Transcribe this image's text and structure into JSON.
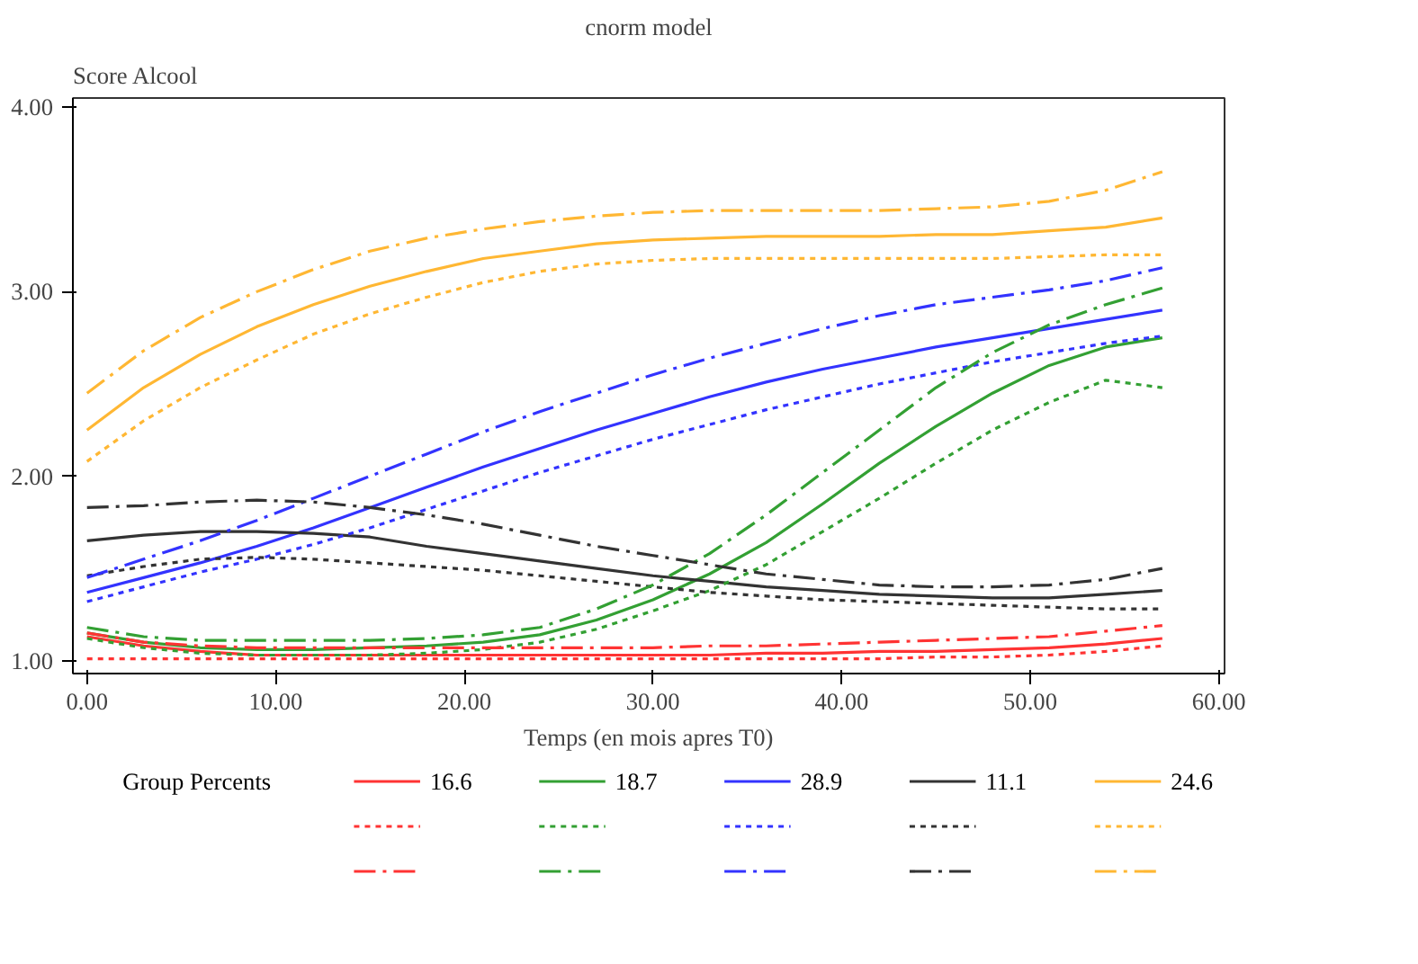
{
  "chart_data": {
    "type": "line",
    "title": "cnorm model",
    "ylabel": "Score Alcool",
    "xlabel": "Temps (en mois apres T0)",
    "legend_title": "Group Percents",
    "x": [
      0,
      3,
      6,
      9,
      12,
      15,
      18,
      21,
      24,
      27,
      30,
      33,
      36,
      39,
      42,
      45,
      48,
      51,
      54,
      57
    ],
    "xlim": [
      -0.75,
      60.3
    ],
    "ylim": [
      0.93,
      4.05
    ],
    "xticks": [
      {
        "value": 0,
        "label": "0.00"
      },
      {
        "value": 10,
        "label": "10.00"
      },
      {
        "value": 20,
        "label": "20.00"
      },
      {
        "value": 30,
        "label": "30.00"
      },
      {
        "value": 40,
        "label": "40.00"
      },
      {
        "value": 50,
        "label": "50.00"
      },
      {
        "value": 60,
        "label": "60.00"
      }
    ],
    "yticks": [
      {
        "value": 1,
        "label": "1.00"
      },
      {
        "value": 2,
        "label": "2.00"
      },
      {
        "value": 3,
        "label": "3.00"
      },
      {
        "value": 4,
        "label": "4.00"
      }
    ],
    "grid": false,
    "legend": "bottom",
    "series": [
      {
        "name": "16.6",
        "color": "#ff3333",
        "line_style": "solid",
        "values": [
          1.13,
          1.08,
          1.05,
          1.03,
          1.03,
          1.03,
          1.03,
          1.03,
          1.03,
          1.03,
          1.03,
          1.03,
          1.04,
          1.04,
          1.05,
          1.05,
          1.06,
          1.07,
          1.09,
          1.12
        ]
      },
      {
        "name": "18.7",
        "color": "#33a033",
        "line_style": "solid",
        "values": [
          1.15,
          1.1,
          1.07,
          1.06,
          1.06,
          1.07,
          1.08,
          1.1,
          1.14,
          1.22,
          1.33,
          1.47,
          1.64,
          1.85,
          2.07,
          2.27,
          2.45,
          2.6,
          2.7,
          2.75
        ]
      },
      {
        "name": "28.9",
        "color": "#3333ff",
        "line_style": "solid",
        "values": [
          1.37,
          1.45,
          1.53,
          1.62,
          1.72,
          1.83,
          1.94,
          2.05,
          2.15,
          2.25,
          2.34,
          2.43,
          2.51,
          2.58,
          2.64,
          2.7,
          2.75,
          2.8,
          2.85,
          2.9
        ]
      },
      {
        "name": "11.1",
        "color": "#333333",
        "line_style": "solid",
        "values": [
          1.65,
          1.68,
          1.7,
          1.7,
          1.69,
          1.67,
          1.62,
          1.58,
          1.54,
          1.5,
          1.46,
          1.43,
          1.4,
          1.38,
          1.36,
          1.35,
          1.34,
          1.34,
          1.36,
          1.38
        ]
      },
      {
        "name": "24.6",
        "color": "#ffb733",
        "line_style": "solid",
        "values": [
          2.25,
          2.48,
          2.66,
          2.81,
          2.93,
          3.03,
          3.11,
          3.18,
          3.22,
          3.26,
          3.28,
          3.29,
          3.3,
          3.3,
          3.3,
          3.31,
          3.31,
          3.33,
          3.35,
          3.4
        ]
      },
      {
        "color": "#ff3333",
        "line_style": "dotted",
        "values": [
          1.01,
          1.01,
          1.01,
          1.01,
          1.01,
          1.01,
          1.01,
          1.01,
          1.01,
          1.01,
          1.01,
          1.01,
          1.01,
          1.01,
          1.01,
          1.02,
          1.02,
          1.03,
          1.05,
          1.08
        ]
      },
      {
        "color": "#33a033",
        "line_style": "dotted",
        "values": [
          1.12,
          1.07,
          1.04,
          1.03,
          1.03,
          1.03,
          1.04,
          1.06,
          1.1,
          1.17,
          1.27,
          1.38,
          1.52,
          1.7,
          1.88,
          2.07,
          2.25,
          2.4,
          2.52,
          2.48
        ]
      },
      {
        "color": "#3333ff",
        "line_style": "dotted",
        "values": [
          1.32,
          1.4,
          1.48,
          1.55,
          1.63,
          1.72,
          1.82,
          1.92,
          2.02,
          2.11,
          2.2,
          2.28,
          2.36,
          2.43,
          2.5,
          2.56,
          2.62,
          2.67,
          2.72,
          2.76
        ]
      },
      {
        "color": "#333333",
        "line_style": "dotted",
        "values": [
          1.46,
          1.51,
          1.55,
          1.56,
          1.55,
          1.53,
          1.51,
          1.49,
          1.46,
          1.43,
          1.4,
          1.37,
          1.35,
          1.33,
          1.32,
          1.31,
          1.3,
          1.29,
          1.28,
          1.28
        ]
      },
      {
        "color": "#ffb733",
        "line_style": "dotted",
        "values": [
          2.08,
          2.3,
          2.48,
          2.63,
          2.77,
          2.88,
          2.97,
          3.05,
          3.11,
          3.15,
          3.17,
          3.18,
          3.18,
          3.18,
          3.18,
          3.18,
          3.18,
          3.19,
          3.2,
          3.2
        ]
      },
      {
        "color": "#ff3333",
        "line_style": "dashed",
        "values": [
          1.15,
          1.1,
          1.08,
          1.07,
          1.07,
          1.07,
          1.07,
          1.07,
          1.07,
          1.07,
          1.07,
          1.08,
          1.08,
          1.09,
          1.1,
          1.11,
          1.12,
          1.13,
          1.16,
          1.19
        ]
      },
      {
        "color": "#33a033",
        "line_style": "dashed",
        "values": [
          1.18,
          1.13,
          1.11,
          1.11,
          1.11,
          1.11,
          1.12,
          1.14,
          1.18,
          1.28,
          1.41,
          1.58,
          1.79,
          2.02,
          2.25,
          2.48,
          2.67,
          2.82,
          2.93,
          3.02
        ]
      },
      {
        "color": "#3333ff",
        "line_style": "dashed",
        "values": [
          1.45,
          1.55,
          1.65,
          1.76,
          1.88,
          2.0,
          2.12,
          2.24,
          2.35,
          2.45,
          2.55,
          2.64,
          2.72,
          2.8,
          2.87,
          2.93,
          2.97,
          3.01,
          3.06,
          3.13
        ]
      },
      {
        "color": "#333333",
        "line_style": "dashed",
        "values": [
          1.83,
          1.84,
          1.86,
          1.87,
          1.86,
          1.83,
          1.79,
          1.74,
          1.68,
          1.62,
          1.57,
          1.52,
          1.47,
          1.44,
          1.41,
          1.4,
          1.4,
          1.41,
          1.44,
          1.5
        ]
      },
      {
        "color": "#ffb733",
        "line_style": "dashed",
        "values": [
          2.45,
          2.68,
          2.86,
          3.0,
          3.12,
          3.22,
          3.29,
          3.34,
          3.38,
          3.41,
          3.43,
          3.44,
          3.44,
          3.44,
          3.44,
          3.45,
          3.46,
          3.49,
          3.55,
          3.65
        ]
      }
    ]
  }
}
